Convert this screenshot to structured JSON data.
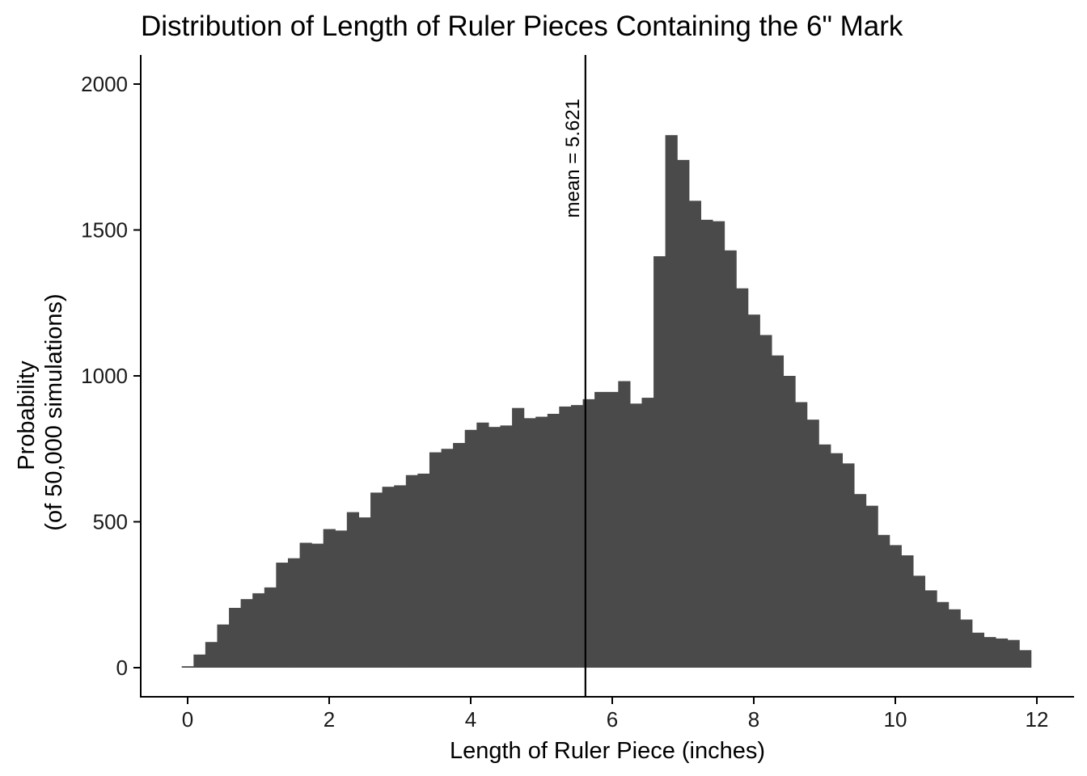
{
  "chart_data": {
    "type": "bar",
    "title": "Distribution of Length of Ruler Pieces Containing the 6\" Mark",
    "xlabel": "Length of Ruler Piece (inches)",
    "ylabel_lines": [
      "Probability",
      "(of 50,000 simulations)"
    ],
    "xlim": [
      -0.65,
      12.65
    ],
    "ylim": [
      -100,
      2100
    ],
    "x_ticks": [
      0,
      2,
      4,
      6,
      8,
      10,
      12
    ],
    "y_ticks": [
      0,
      500,
      1000,
      1500,
      2000
    ],
    "grid": false,
    "bar_color": "#4a4a4a",
    "bin_width": 0.1667,
    "x": [
      0.0,
      0.167,
      0.333,
      0.5,
      0.667,
      0.833,
      1.0,
      1.167,
      1.333,
      1.5,
      1.667,
      1.833,
      2.0,
      2.167,
      2.333,
      2.5,
      2.667,
      2.833,
      3.0,
      3.167,
      3.333,
      3.5,
      3.667,
      3.833,
      4.0,
      4.167,
      4.333,
      4.5,
      4.667,
      4.833,
      5.0,
      5.167,
      5.333,
      5.5,
      5.667,
      5.833,
      6.0,
      6.167,
      6.333,
      6.5,
      6.667,
      6.833,
      7.0,
      7.167,
      7.333,
      7.5,
      7.667,
      7.833,
      8.0,
      8.167,
      8.333,
      8.5,
      8.667,
      8.833,
      9.0,
      9.167,
      9.333,
      9.5,
      9.667,
      9.833,
      10.0,
      10.167,
      10.333,
      10.5,
      10.667,
      10.833,
      11.0,
      11.167,
      11.333,
      11.5,
      11.667,
      11.833
    ],
    "values": [
      5,
      45,
      88,
      148,
      205,
      235,
      255,
      275,
      360,
      375,
      428,
      425,
      475,
      470,
      533,
      515,
      600,
      620,
      625,
      660,
      665,
      738,
      750,
      770,
      815,
      840,
      825,
      830,
      890,
      855,
      860,
      870,
      895,
      900,
      920,
      945,
      945,
      982,
      905,
      925,
      1410,
      1825,
      1740,
      1600,
      1535,
      1530,
      1430,
      1300,
      1210,
      1140,
      1070,
      1000,
      910,
      850,
      765,
      735,
      700,
      595,
      555,
      455,
      420,
      385,
      315,
      265,
      225,
      200,
      165,
      120,
      105,
      100,
      95,
      60
    ]
  },
  "mean_line": {
    "x": 5.621,
    "label": "mean = 5.621"
  }
}
